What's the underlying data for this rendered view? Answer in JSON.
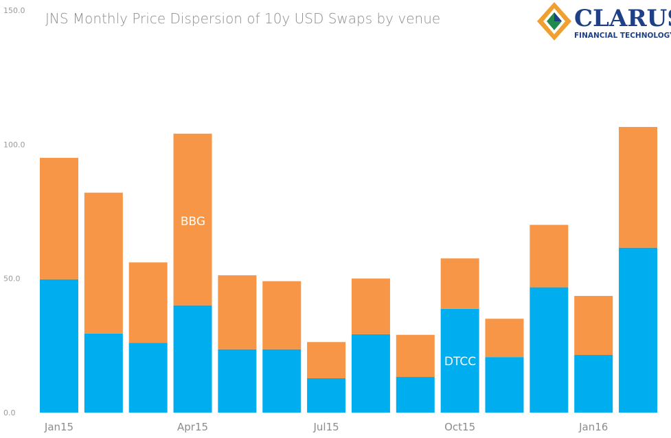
{
  "colors": {
    "dtcc": "#00aeef",
    "bbg": "#f79646"
  },
  "logo": {
    "name": "CLARUS",
    "tagline": "FINANCIAL TECHNOLOGY"
  },
  "chart_data": {
    "type": "bar",
    "stacked": true,
    "title": "JNS Monthly Price Dispersion of 10y USD Swaps by venue",
    "ylim": [
      0,
      150
    ],
    "yticks": [
      "0.0",
      "50.0",
      "100.0",
      "150.0"
    ],
    "xtick_labels": [
      "Jan15",
      "Apr15",
      "Jul15",
      "Oct15",
      "Jan16"
    ],
    "categories": [
      "Jan15",
      "Feb15",
      "Mar15",
      "Apr15",
      "May15",
      "Jun15",
      "Jul15",
      "Aug15",
      "Sep15",
      "Oct15",
      "Nov15",
      "Dec15",
      "Jan16",
      "Feb16"
    ],
    "series": [
      {
        "name": "DTCC",
        "color": "#00aeef",
        "values": [
          49.7,
          29.5,
          26,
          40,
          23.6,
          23.6,
          12.8,
          29.2,
          13.3,
          38.7,
          20.7,
          46.7,
          21.5,
          61.5
        ]
      },
      {
        "name": "BBG",
        "color": "#f79646",
        "values": [
          45.3,
          52.5,
          30,
          64,
          27.6,
          25.4,
          13.5,
          20.8,
          15.7,
          18.8,
          14.3,
          23.3,
          22,
          45
        ]
      }
    ],
    "series_labels": {
      "BBG": "BBG",
      "DTCC": "DTCC"
    }
  }
}
